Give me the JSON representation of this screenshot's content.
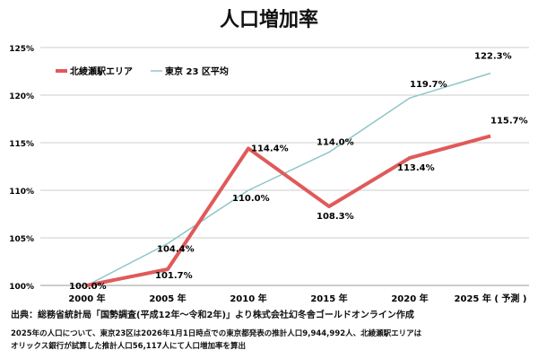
{
  "chart_data": {
    "type": "line",
    "title": "人口増加率",
    "categories": [
      "2000 年",
      "2005 年",
      "2010 年",
      "2015 年",
      "2020 年",
      "2025 年 ( 予測 )"
    ],
    "series": [
      {
        "name": "北綾瀬駅エリア",
        "color": "#e05a5a",
        "values": [
          100.0,
          101.7,
          114.4,
          108.3,
          113.4,
          115.7
        ],
        "labels": [
          "100.0%",
          "101.7%",
          "114.4%",
          "108.3%",
          "113.4%",
          "115.7%"
        ]
      },
      {
        "name": "東京 23 区平均",
        "color": "#8ec5c8",
        "values": [
          100.0,
          104.4,
          110.0,
          114.0,
          119.7,
          122.3
        ],
        "labels": [
          "",
          "104.4%",
          "110.0%",
          "114.0%",
          "119.7%",
          "122.3%"
        ]
      }
    ],
    "yticks": [
      "100%",
      "105%",
      "110%",
      "115%",
      "120%",
      "125%"
    ],
    "ylim": [
      100,
      125
    ],
    "grid": true,
    "legend": "top-left"
  },
  "footer": {
    "source": "出典：総務省統計局「国勢調査(平成12年～令和2年)」より株式会社幻冬舎ゴールドオンライン作成",
    "note1": "2025年の人口について、東京23区は2026年1月1日時点での東京都発表の推計人口9,944,992人、北綾瀬駅エリアは",
    "note2": "オリックス銀行が試算した推計人口56,117人にて人口増加率を算出"
  }
}
